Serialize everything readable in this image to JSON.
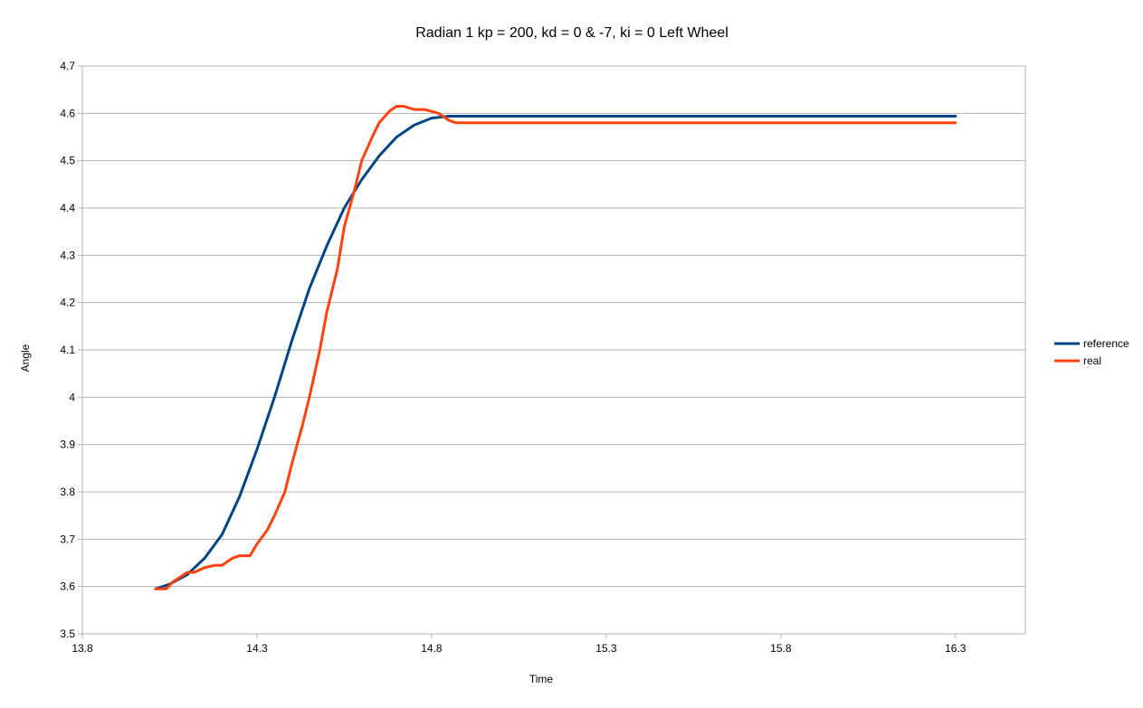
{
  "chart_data": {
    "type": "line",
    "title": "Radian 1 kp = 200, kd = 0 & -7, ki = 0 Left Wheel",
    "xlabel": "Time",
    "ylabel": "Angle",
    "xlim": [
      13.8,
      16.5
    ],
    "ylim": [
      3.5,
      4.7
    ],
    "x_ticks": [
      "13.8",
      "14.3",
      "14.8",
      "15.3",
      "15.8",
      "16.3"
    ],
    "y_ticks": [
      "3.5",
      "3.6",
      "3.7",
      "3.8",
      "3.9",
      "4",
      "4.1",
      "4.2",
      "4.3",
      "4.4",
      "4.5",
      "4.6",
      "4.7"
    ],
    "x_tick_values": [
      13.8,
      14.3,
      14.8,
      15.3,
      15.8,
      16.3
    ],
    "y_tick_values": [
      3.5,
      3.6,
      3.7,
      3.8,
      3.9,
      4.0,
      4.1,
      4.2,
      4.3,
      4.4,
      4.5,
      4.6,
      4.7
    ],
    "grid": true,
    "legend_position": "right",
    "series": [
      {
        "name": "reference",
        "color": "#004586",
        "x": [
          14.01,
          14.05,
          14.1,
          14.15,
          14.2,
          14.25,
          14.3,
          14.35,
          14.4,
          14.45,
          14.5,
          14.55,
          14.6,
          14.65,
          14.7,
          14.75,
          14.8,
          14.85,
          15.0,
          15.5,
          16.0,
          16.3
        ],
        "y": [
          3.595,
          3.605,
          3.625,
          3.66,
          3.71,
          3.79,
          3.89,
          4.0,
          4.12,
          4.23,
          4.32,
          4.4,
          4.46,
          4.51,
          4.55,
          4.575,
          4.59,
          4.594,
          4.594,
          4.594,
          4.594,
          4.594
        ]
      },
      {
        "name": "real",
        "color": "#ff420e",
        "x": [
          14.01,
          14.04,
          14.06,
          14.08,
          14.1,
          14.12,
          14.15,
          14.18,
          14.2,
          14.23,
          14.25,
          14.28,
          14.3,
          14.33,
          14.35,
          14.38,
          14.4,
          14.43,
          14.45,
          14.48,
          14.5,
          14.53,
          14.55,
          14.58,
          14.6,
          14.63,
          14.65,
          14.68,
          14.7,
          14.72,
          14.75,
          14.78,
          14.82,
          14.85,
          14.87,
          15.0,
          15.5,
          16.0,
          16.3
        ],
        "y": [
          3.595,
          3.595,
          3.61,
          3.62,
          3.63,
          3.63,
          3.64,
          3.645,
          3.645,
          3.66,
          3.665,
          3.665,
          3.69,
          3.72,
          3.75,
          3.8,
          3.86,
          3.94,
          4.0,
          4.1,
          4.18,
          4.27,
          4.36,
          4.44,
          4.5,
          4.55,
          4.58,
          4.605,
          4.615,
          4.615,
          4.608,
          4.608,
          4.6,
          4.585,
          4.58,
          4.58,
          4.58,
          4.58,
          4.58
        ]
      }
    ]
  }
}
